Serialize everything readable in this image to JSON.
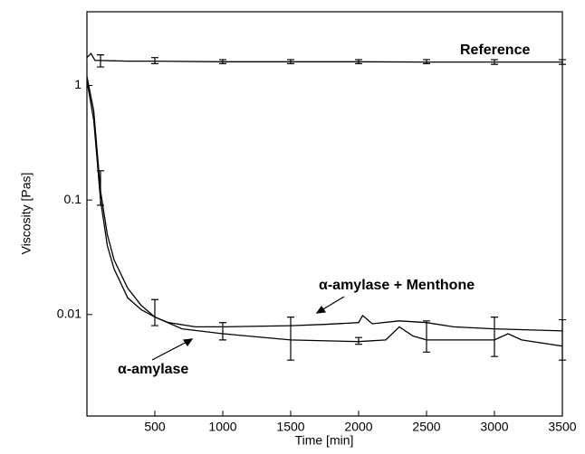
{
  "chart_data": {
    "type": "line",
    "log_y": true,
    "xlabel": "Time [min]",
    "ylabel": "Viscosity [Pas]",
    "xlim": [
      0,
      3500
    ],
    "ylim": [
      0.0013,
      4.4
    ],
    "xticks": [
      500,
      1000,
      1500,
      2000,
      2500,
      3000,
      3500
    ],
    "yticks": [
      0.01,
      0.1,
      1
    ],
    "series": [
      {
        "name": "Reference",
        "color": "#000000",
        "x": [
          0,
          30,
          60,
          100,
          300,
          500,
          1000,
          1500,
          2000,
          2500,
          3000,
          3500
        ],
        "values": [
          1.75,
          1.9,
          1.65,
          1.65,
          1.63,
          1.63,
          1.61,
          1.61,
          1.61,
          1.6,
          1.6,
          1.6
        ],
        "errorbars": {
          "x": [
            100,
            500,
            1000,
            1500,
            2000,
            2500,
            3000,
            3500
          ],
          "low": [
            1.45,
            1.55,
            1.55,
            1.55,
            1.55,
            1.55,
            1.53,
            1.53
          ],
          "high": [
            1.85,
            1.75,
            1.68,
            1.68,
            1.68,
            1.68,
            1.68,
            1.68
          ]
        }
      },
      {
        "name": "α-amylase + Menthone",
        "color": "#000000",
        "x": [
          0,
          50,
          100,
          150,
          200,
          300,
          400,
          500,
          600,
          800,
          1000,
          1500,
          1750,
          2000,
          2030,
          2100,
          2300,
          2500,
          2700,
          3000,
          3500
        ],
        "values": [
          1.2,
          0.6,
          0.12,
          0.05,
          0.03,
          0.017,
          0.012,
          0.0095,
          0.0085,
          0.0078,
          0.0078,
          0.008,
          0.0082,
          0.0085,
          0.0098,
          0.0083,
          0.0088,
          0.0085,
          0.0078,
          0.0075,
          0.0072
        ],
        "errorbars": {
          "x": [
            100
          ],
          "low": [
            0.09
          ],
          "high": [
            0.18
          ]
        }
      },
      {
        "name": "α-amylase",
        "color": "#000000",
        "x": [
          0,
          50,
          100,
          150,
          200,
          300,
          400,
          500,
          700,
          1000,
          1500,
          2000,
          2200,
          2300,
          2400,
          2500,
          3000,
          3100,
          3200,
          3500
        ],
        "values": [
          1.1,
          0.5,
          0.1,
          0.04,
          0.025,
          0.014,
          0.011,
          0.0095,
          0.0075,
          0.0068,
          0.006,
          0.0058,
          0.006,
          0.0078,
          0.0065,
          0.006,
          0.006,
          0.0068,
          0.006,
          0.0053
        ],
        "errorbars": {
          "x": [
            500,
            1000,
            1500,
            2000,
            2500,
            3000,
            3500
          ],
          "low": [
            0.008,
            0.006,
            0.004,
            0.0055,
            0.0047,
            0.0043,
            0.004
          ],
          "high": [
            0.0135,
            0.0085,
            0.0095,
            0.0063,
            0.0088,
            0.0095,
            0.009
          ]
        }
      }
    ],
    "annotations": [
      "Reference",
      "α-amylase + Menthone",
      "α-amylase"
    ]
  }
}
